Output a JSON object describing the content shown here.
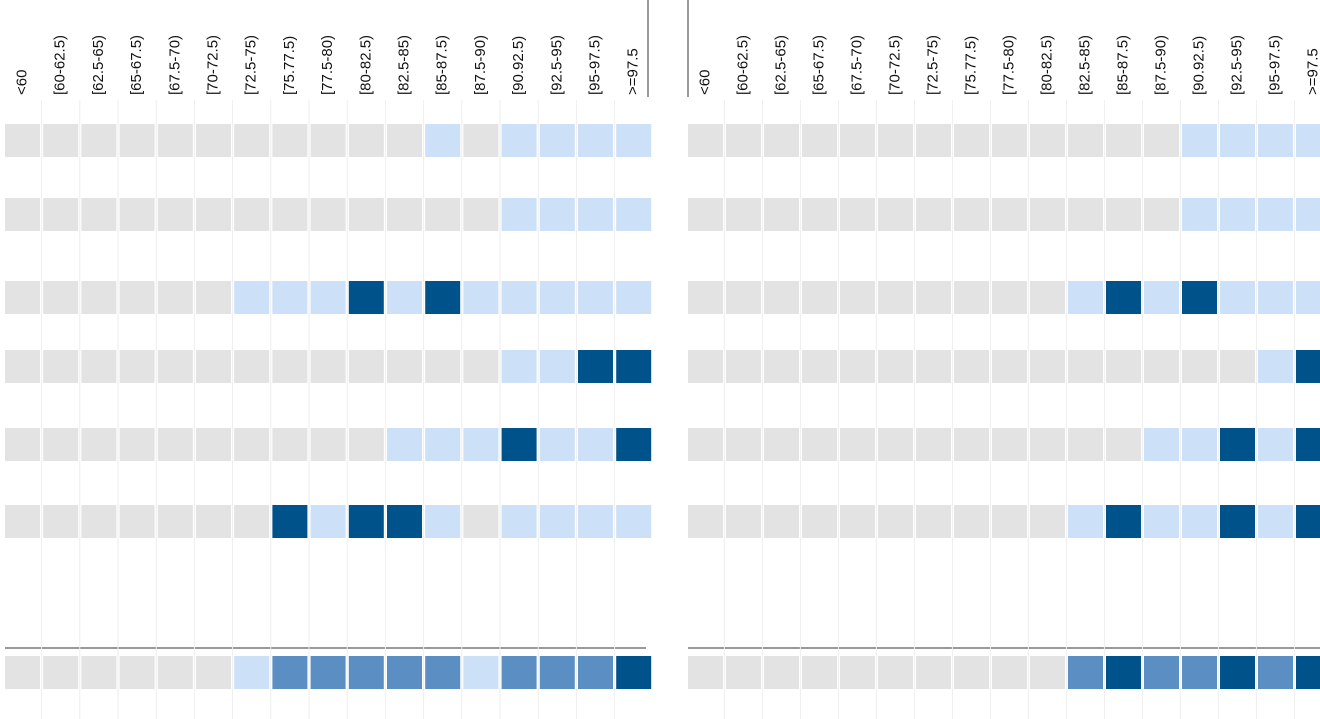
{
  "palette": [
    "#e3e3e3",
    "#cce0f7",
    "#5b8fc4",
    "#00528b"
  ],
  "panels": [
    {
      "columns": [
        "<60",
        "[60-62.5)",
        "[62.5-65)",
        "[65-67.5)",
        "[67.5-70)",
        "[70-72.5)",
        "[72.5-75)",
        "[75.77.5)",
        "[77.5-80)",
        "[80-82.5)",
        "[82.5-85)",
        "[85-87.5)",
        "[87.5-90)",
        "[90.92.5)",
        "[92.5-95)",
        "[95-97.5)",
        ">=97.5"
      ],
      "rows": [
        [
          0,
          0,
          0,
          0,
          0,
          0,
          0,
          0,
          0,
          0,
          0,
          1,
          0,
          1,
          1,
          1,
          1
        ],
        [
          0,
          0,
          0,
          0,
          0,
          0,
          0,
          0,
          0,
          0,
          0,
          0,
          0,
          1,
          1,
          1,
          1
        ],
        [
          0,
          0,
          0,
          0,
          0,
          0,
          1,
          1,
          1,
          3,
          1,
          3,
          1,
          1,
          1,
          1,
          1
        ],
        [
          0,
          0,
          0,
          0,
          0,
          0,
          0,
          0,
          0,
          0,
          0,
          0,
          0,
          1,
          1,
          3,
          3
        ],
        [
          0,
          0,
          0,
          0,
          0,
          0,
          0,
          0,
          0,
          0,
          1,
          1,
          1,
          3,
          1,
          1,
          3
        ],
        [
          0,
          0,
          0,
          0,
          0,
          0,
          0,
          3,
          1,
          3,
          3,
          1,
          0,
          1,
          1,
          1,
          1
        ]
      ],
      "total": [
        0,
        0,
        0,
        0,
        0,
        0,
        1,
        2,
        2,
        2,
        2,
        2,
        1,
        2,
        2,
        2,
        3
      ]
    },
    {
      "columns": [
        "<60",
        "[60-62.5)",
        "[62.5-65)",
        "[65-67.5)",
        "[67.5-70)",
        "[70-72.5)",
        "[72.5-75)",
        "[75.77.5)",
        "[77.5-80)",
        "[80-82.5)",
        "[82.5-85)",
        "[85-87.5)",
        "[87.5-90)",
        "[90.92.5)",
        "[92.5-95)",
        "[95-97.5)",
        ">=97.5"
      ],
      "rows": [
        [
          0,
          0,
          0,
          0,
          0,
          0,
          0,
          0,
          0,
          0,
          0,
          0,
          0,
          1,
          1,
          1,
          1
        ],
        [
          0,
          0,
          0,
          0,
          0,
          0,
          0,
          0,
          0,
          0,
          0,
          0,
          0,
          1,
          1,
          1,
          1
        ],
        [
          0,
          0,
          0,
          0,
          0,
          0,
          0,
          0,
          0,
          0,
          1,
          3,
          1,
          3,
          1,
          1,
          1
        ],
        [
          0,
          0,
          0,
          0,
          0,
          0,
          0,
          0,
          0,
          0,
          0,
          0,
          0,
          0,
          0,
          1,
          3
        ],
        [
          0,
          0,
          0,
          0,
          0,
          0,
          0,
          0,
          0,
          0,
          0,
          0,
          1,
          1,
          3,
          1,
          3
        ],
        [
          0,
          0,
          0,
          0,
          0,
          0,
          0,
          0,
          0,
          0,
          1,
          3,
          1,
          1,
          3,
          1,
          3
        ]
      ],
      "total": [
        0,
        0,
        0,
        0,
        0,
        0,
        0,
        0,
        0,
        0,
        2,
        3,
        2,
        2,
        3,
        2,
        3
      ]
    }
  ]
}
